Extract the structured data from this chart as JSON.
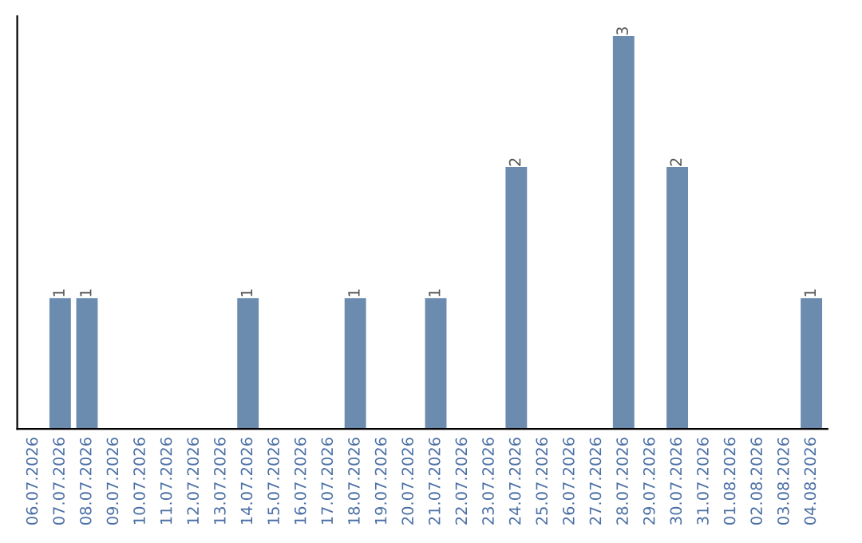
{
  "chart_data": {
    "type": "bar",
    "categories": [
      "06.07.2026",
      "07.07.2026",
      "08.07.2026",
      "09.07.2026",
      "10.07.2026",
      "11.07.2026",
      "12.07.2026",
      "13.07.2026",
      "14.07.2026",
      "15.07.2026",
      "16.07.2026",
      "17.07.2026",
      "18.07.2026",
      "19.07.2026",
      "20.07.2026",
      "21.07.2026",
      "22.07.2026",
      "23.07.2026",
      "24.07.2026",
      "25.07.2026",
      "26.07.2026",
      "27.07.2026",
      "28.07.2026",
      "29.07.2026",
      "30.07.2026",
      "31.07.2026",
      "01.08.2026",
      "02.08.2026",
      "03.08.2026",
      "04.08.2026"
    ],
    "values": [
      0,
      1,
      1,
      0,
      0,
      0,
      0,
      0,
      1,
      0,
      0,
      0,
      1,
      0,
      0,
      1,
      0,
      0,
      2,
      0,
      0,
      0,
      3,
      0,
      2,
      0,
      0,
      0,
      0,
      1
    ],
    "value_labels": [
      null,
      "1",
      "1",
      null,
      null,
      null,
      null,
      null,
      "1",
      null,
      null,
      null,
      "1",
      null,
      null,
      "1",
      null,
      null,
      "2",
      null,
      null,
      null,
      "3",
      null,
      "2",
      null,
      null,
      null,
      null,
      "1"
    ],
    "color": "#6b8cae",
    "tick_labels": "x",
    "grid": false,
    "legend": false
  }
}
